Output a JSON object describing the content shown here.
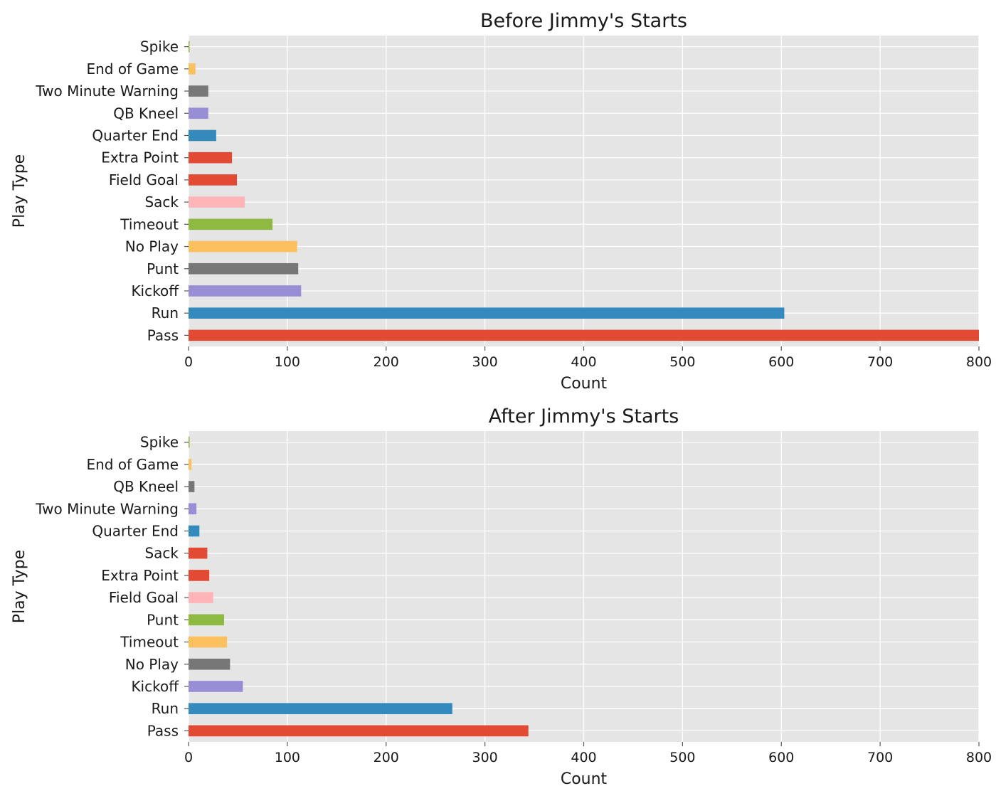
{
  "chart_data": [
    {
      "type": "bar",
      "orientation": "horizontal",
      "title": "Before Jimmy's Starts",
      "xlabel": "Count",
      "ylabel": "Play Type",
      "xlim": [
        0,
        800
      ],
      "xticks": [
        "0",
        "100",
        "200",
        "300",
        "400",
        "500",
        "600",
        "700",
        "800"
      ],
      "grid": true,
      "categories": [
        "Pass",
        "Run",
        "Kickoff",
        "Punt",
        "No Play",
        "Timeout",
        "Sack",
        "Field Goal",
        "Extra Point",
        "Quarter End",
        "QB Kneel",
        "Two Minute Warning",
        "End of Game",
        "Spike"
      ],
      "values": [
        800,
        603,
        114,
        111,
        110,
        85,
        57,
        49,
        44,
        28,
        20,
        20,
        7,
        1
      ],
      "colors": [
        "#e24a33",
        "#348abd",
        "#988ed5",
        "#777777",
        "#fbc15e",
        "#8eba42",
        "#ffb5b8",
        "#e24a33",
        "#e24a33",
        "#348abd",
        "#988ed5",
        "#777777",
        "#fbc15e",
        "#8eba42"
      ]
    },
    {
      "type": "bar",
      "orientation": "horizontal",
      "title": "After Jimmy's Starts",
      "xlabel": "Count",
      "ylabel": "Play Type",
      "xlim": [
        0,
        800
      ],
      "xticks": [
        "0",
        "100",
        "200",
        "300",
        "400",
        "500",
        "600",
        "700",
        "800"
      ],
      "grid": true,
      "categories": [
        "Pass",
        "Run",
        "Kickoff",
        "No Play",
        "Timeout",
        "Punt",
        "Field Goal",
        "Extra Point",
        "Sack",
        "Quarter End",
        "Two Minute Warning",
        "QB Kneel",
        "End of Game",
        "Spike"
      ],
      "values": [
        344,
        267,
        55,
        42,
        39,
        36,
        25,
        21,
        19,
        11,
        8,
        6,
        3,
        1
      ],
      "colors": [
        "#e24a33",
        "#348abd",
        "#988ed5",
        "#777777",
        "#fbc15e",
        "#8eba42",
        "#ffb5b8",
        "#e24a33",
        "#e24a33",
        "#348abd",
        "#988ed5",
        "#777777",
        "#fbc15e",
        "#8eba42"
      ]
    }
  ]
}
